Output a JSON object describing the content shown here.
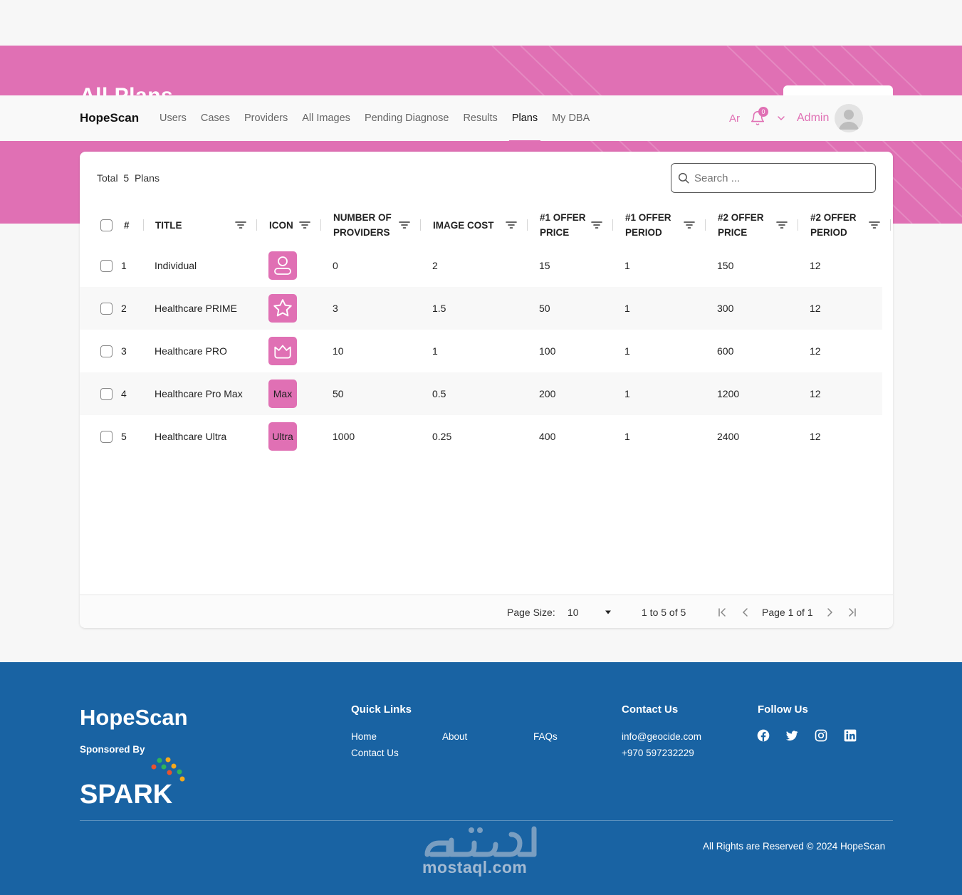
{
  "page": {
    "title": "All Plans"
  },
  "navbar": {
    "brand": "HopeScan",
    "links": [
      "Users",
      "Cases",
      "Providers",
      "All Images",
      "Pending Diagnose",
      "Results",
      "Plans",
      "My DBA"
    ],
    "active": "Plans",
    "language": "Ar",
    "notifications": "0",
    "user": "Admin"
  },
  "toolbar": {
    "total_label": "Total",
    "total_count": "5",
    "total_unit": "Plans",
    "search_placeholder": "Search ..."
  },
  "table": {
    "columns": [
      "#",
      "TITLE",
      "ICON",
      "NUMBER OF PROVIDERS",
      "IMAGE COST",
      "#1 OFFER PRICE",
      "#1 OFFER PERIOD",
      "#2 OFFER PRICE",
      "#2 OFFER PERIOD"
    ],
    "rows": [
      {
        "num": "1",
        "title": "Individual",
        "icon": "person-icon",
        "icon_text": "",
        "providers": "0",
        "image_cost": "2",
        "offer1_price": "15",
        "offer1_period": "1",
        "offer2_price": "150",
        "offer2_period": "12"
      },
      {
        "num": "2",
        "title": "Healthcare PRIME",
        "icon": "star-icon",
        "icon_text": "",
        "providers": "3",
        "image_cost": "1.5",
        "offer1_price": "50",
        "offer1_period": "1",
        "offer2_price": "300",
        "offer2_period": "12"
      },
      {
        "num": "3",
        "title": "Healthcare PRO",
        "icon": "crown-icon",
        "icon_text": "",
        "providers": "10",
        "image_cost": "1",
        "offer1_price": "100",
        "offer1_period": "1",
        "offer2_price": "600",
        "offer2_period": "12"
      },
      {
        "num": "4",
        "title": "Healthcare Pro Max",
        "icon": "text-icon",
        "icon_text": "Max",
        "providers": "50",
        "image_cost": "0.5",
        "offer1_price": "200",
        "offer1_period": "1",
        "offer2_price": "1200",
        "offer2_period": "12"
      },
      {
        "num": "5",
        "title": "Healthcare Ultra",
        "icon": "text-icon",
        "icon_text": "Ultra",
        "providers": "1000",
        "image_cost": "0.25",
        "offer1_price": "400",
        "offer1_period": "1",
        "offer2_price": "2400",
        "offer2_period": "12"
      }
    ]
  },
  "pagination": {
    "page_size_label": "Page Size:",
    "page_size": "10",
    "range": "1 to 5 of 5",
    "page_info": "Page 1 of 1"
  },
  "footer": {
    "brand": "HopeScan",
    "sponsored_by": "Sponsored By",
    "sponsor_logo_text": "SPARK",
    "quick_links_title": "Quick Links",
    "quick_links": [
      "Home",
      "About",
      "FAQs",
      "Contact Us"
    ],
    "contact_title": "Contact Us",
    "email": "info@geocide.com",
    "phone": "+970 597232229",
    "follow_title": "Follow Us",
    "social": [
      "facebook-icon",
      "twitter-icon",
      "instagram-icon",
      "linkedin-icon"
    ],
    "rights": "All Rights are Reserved © 2024 HopeScan",
    "watermark": "mostaql.com"
  },
  "colors": {
    "accent": "#e070b4",
    "footer": "#1963a3"
  }
}
